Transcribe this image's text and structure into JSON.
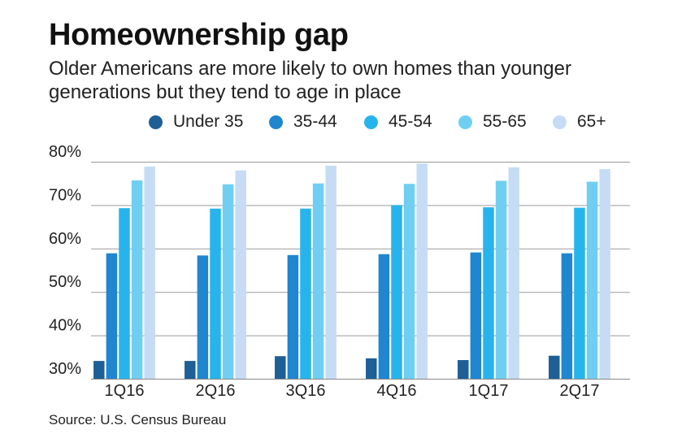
{
  "title": "Homeownership gap",
  "subtitle": "Older Americans are more likely to own homes than younger generations but they tend to age in place",
  "source": "Source: U.S. Census Bureau",
  "colors": [
    "#1e5f96",
    "#1f86cf",
    "#27b4ec",
    "#6fcff2",
    "#c6dcf5"
  ],
  "chart_data": {
    "type": "bar",
    "categories": [
      "1Q16",
      "2Q16",
      "3Q16",
      "4Q16",
      "1Q17",
      "2Q17"
    ],
    "series": [
      {
        "name": "Under 35",
        "values": [
          34.1,
          34.1,
          35.2,
          34.7,
          34.3,
          35.3
        ]
      },
      {
        "name": "35-44",
        "values": [
          58.9,
          58.4,
          58.5,
          58.7,
          59.1,
          58.9
        ]
      },
      {
        "name": "45-54",
        "values": [
          69.3,
          69.2,
          69.2,
          70.0,
          69.5,
          69.4
        ]
      },
      {
        "name": "55-65",
        "values": [
          75.7,
          74.8,
          75.0,
          74.9,
          75.6,
          75.4
        ]
      },
      {
        "name": "65+",
        "values": [
          78.9,
          78.0,
          79.1,
          79.6,
          78.7,
          78.3
        ]
      }
    ],
    "yticks": [
      "80%",
      "70%",
      "60%",
      "50%",
      "40%",
      "30%"
    ],
    "ylim": [
      30,
      80
    ],
    "grid": true,
    "legend": "top"
  }
}
